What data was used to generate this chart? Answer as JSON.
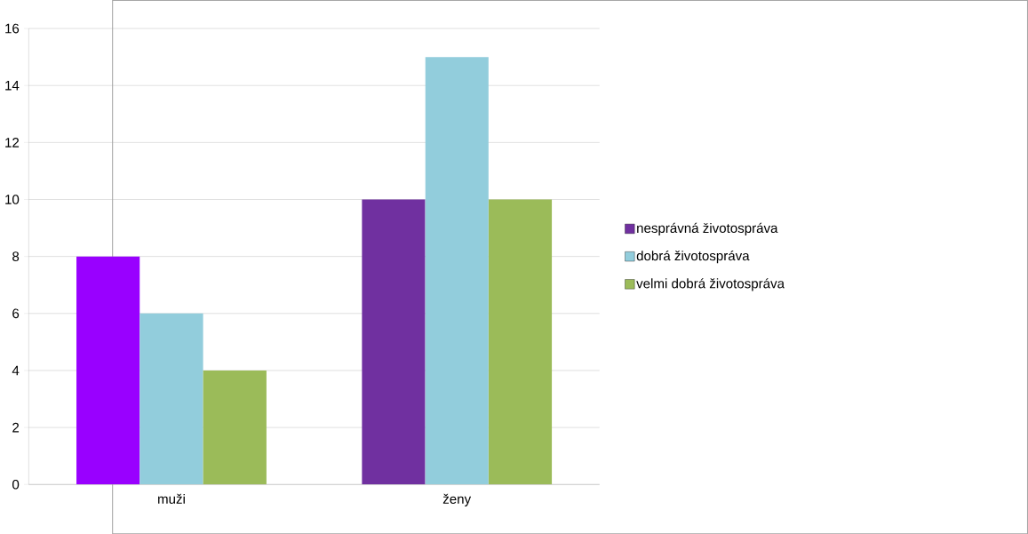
{
  "chart_data": {
    "type": "bar",
    "categories": [
      "muži",
      "ženy"
    ],
    "series": [
      {
        "name": "nesprávná životospráva",
        "color": "#7030a0",
        "colors": [
          "#9900ff",
          "#7030a0"
        ],
        "values": [
          8,
          10
        ]
      },
      {
        "name": "dobrá životospráva",
        "color": "#92cddc",
        "values": [
          6,
          15
        ]
      },
      {
        "name": "velmi dobrá životospráva",
        "color": "#9bbb59",
        "values": [
          4,
          10
        ]
      }
    ],
    "ylim": [
      0,
      16
    ],
    "yticks": [
      0,
      2,
      4,
      6,
      8,
      10,
      12,
      14,
      16
    ],
    "grid": "y",
    "legend": "right"
  }
}
